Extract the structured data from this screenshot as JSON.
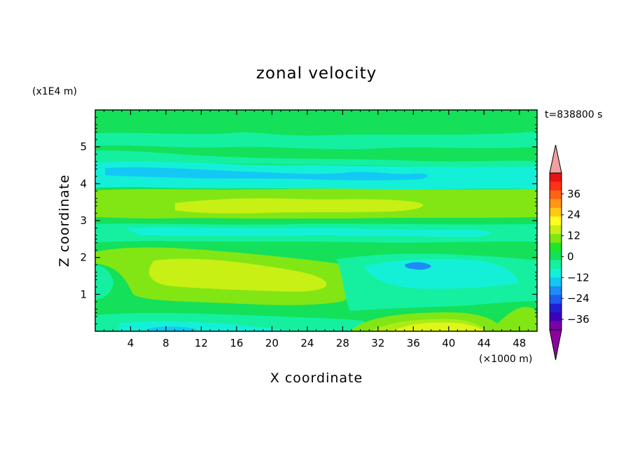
{
  "chart_data": {
    "type": "heatmap",
    "title": "zonal velocity",
    "xlabel": "X coordinate",
    "ylabel": "Z coordinate",
    "x_unit_label": "(×1000 m)",
    "y_unit_label": "(x1E4 m)",
    "time_label": "t=838800 s",
    "xlim": [
      0,
      50
    ],
    "ylim": [
      0,
      6
    ],
    "x_ticks": [
      4,
      8,
      12,
      16,
      20,
      24,
      28,
      32,
      36,
      40,
      44,
      48
    ],
    "y_ticks": [
      1,
      2,
      3,
      4,
      5
    ],
    "colorbar": {
      "levels": [
        -36,
        -24,
        -12,
        0,
        12,
        24,
        36
      ],
      "colors": [
        "#7a00a8",
        "#3d00b8",
        "#1f1fd6",
        "#1e5cf0",
        "#1e8cf5",
        "#14c8f5",
        "#14f0d8",
        "#14f0a0",
        "#14e05a",
        "#1ee628",
        "#82e614",
        "#c8f014",
        "#ffff1e",
        "#ffc814",
        "#ff9614",
        "#ff6414",
        "#ff3214",
        "#e61414"
      ],
      "under_color": "#8c00a0",
      "over_color": "#f0a0a0"
    },
    "regions_note_colors": {
      "neg_12": "#14c8f5",
      "neg_6": "#14f0d8",
      "near_0_neg": "#14f0a0",
      "near_0_pos": "#14e05a",
      "pos_6": "#82e614",
      "pos_12": "#c8f014",
      "pos_18": "#ffff1e",
      "neg_18": "#1e8cf5",
      "neg_24": "#1e5cf0"
    }
  }
}
